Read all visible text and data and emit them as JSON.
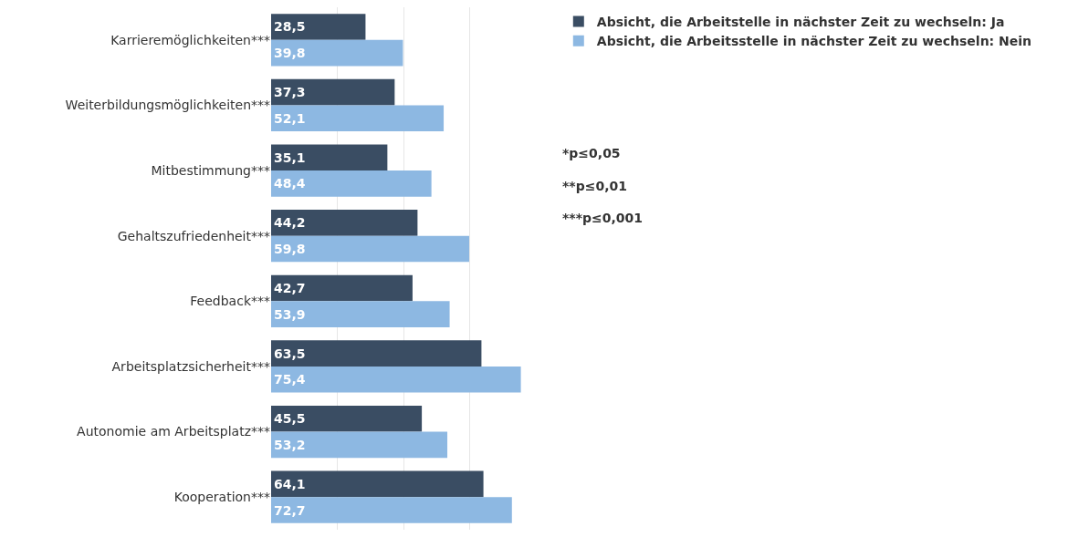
{
  "chart_data": {
    "type": "bar",
    "orientation": "horizontal",
    "categories": [
      "Karrieremöglichkeiten***",
      "Weiterbildungsmöglichkeiten***",
      "Mitbestimmung***",
      "Gehaltszufriedenheit***",
      "Feedback***",
      "Arbeitsplatzsicherheit***",
      "Autonomie am Arbeitsplatz***",
      "Kooperation***"
    ],
    "series": [
      {
        "name": "Absicht, die Arbeitstelle in nächster Zeit zu wechseln: Ja",
        "color": "#3a4d63",
        "values": [
          28.5,
          37.3,
          35.1,
          44.2,
          42.7,
          63.5,
          45.5,
          64.1
        ],
        "value_labels": [
          "28,5",
          "37,3",
          "35,1",
          "44,2",
          "42,7",
          "63,5",
          "45,5",
          "64,1"
        ]
      },
      {
        "name": "Absicht, die Arbeitsstelle in nächster Zeit zu wechseln: Nein",
        "color": "#8db8e2",
        "values": [
          39.8,
          52.1,
          48.4,
          59.8,
          53.9,
          75.4,
          53.2,
          72.7
        ],
        "value_labels": [
          "39,8",
          "52,1",
          "48,4",
          "59,8",
          "53,9",
          "75,4",
          "53,2",
          "72,7"
        ]
      }
    ],
    "tick_labels": "y",
    "grid": "x",
    "legend": "top right",
    "annotations": [
      "*p≤0,05",
      "**p≤0,01",
      "***p≤0,001"
    ]
  }
}
